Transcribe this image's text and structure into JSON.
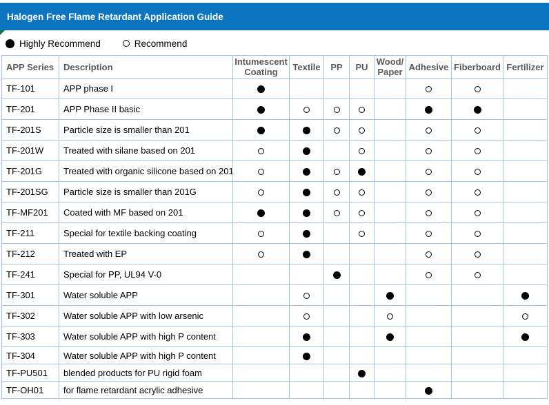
{
  "title": "Halogen Free Flame Retardant Application Guide",
  "legend": {
    "highly_recommend": "Highly Recommend",
    "recommend": "Recommend"
  },
  "colors": {
    "title_bar_blue": "#0d74c2",
    "grid_border_blue": "#aac3dd",
    "header_text_gray": "#595959",
    "flag_green": "#1e7145",
    "marker_black": "#000000"
  },
  "table": {
    "columns": [
      "APP Series",
      "Description",
      "Intumescent Coating",
      "Textile",
      "PP",
      "PU",
      "Wood/ Paper",
      "Adhesive",
      "Fiberboard",
      "Fertilizer"
    ],
    "marker_meaning": {
      "H": "Highly Recommend",
      "R": "Recommend"
    },
    "rows": [
      {
        "series": "TF-101",
        "description": "APP phase I",
        "marks": [
          "H",
          "",
          "",
          "",
          "",
          "R",
          "R",
          ""
        ]
      },
      {
        "series": "TF-201",
        "description": "APP Phase II basic",
        "marks": [
          "H",
          "R",
          "R",
          "R",
          "",
          "H",
          "H",
          ""
        ]
      },
      {
        "series": "TF-201S",
        "description": "Particle size is smaller than 201",
        "marks": [
          "H",
          "H",
          "R",
          "R",
          "",
          "R",
          "R",
          ""
        ]
      },
      {
        "series": "TF-201W",
        "description": "Treated with silane based on 201",
        "marks": [
          "R",
          "H",
          "",
          "R",
          "",
          "R",
          "R",
          ""
        ]
      },
      {
        "series": "TF-201G",
        "description": "Treated with organic silicone based on 201",
        "marks": [
          "R",
          "H",
          "R",
          "H",
          "",
          "R",
          "R",
          ""
        ]
      },
      {
        "series": "TF-201SG",
        "description": "Particle size is smaller than 201G",
        "marks": [
          "R",
          "H",
          "R",
          "R",
          "",
          "R",
          "R",
          ""
        ]
      },
      {
        "series": "TF-MF201",
        "description": "Coated with MF based on 201",
        "marks": [
          "H",
          "H",
          "R",
          "R",
          "",
          "R",
          "R",
          ""
        ]
      },
      {
        "series": "TF-211",
        "description": "Special for textile backing coating",
        "marks": [
          "R",
          "H",
          "",
          "R",
          "",
          "R",
          "R",
          ""
        ]
      },
      {
        "series": "TF-212",
        "description": "Treated with EP",
        "marks": [
          "R",
          "H",
          "",
          "",
          "",
          "R",
          "R",
          ""
        ]
      },
      {
        "series": "TF-241",
        "description": "Special for PP, UL94 V-0",
        "marks": [
          "",
          "",
          "H",
          "",
          "",
          "R",
          "R",
          ""
        ]
      },
      {
        "series": "TF-301",
        "description": "Water soluble APP",
        "marks": [
          "",
          "R",
          "",
          "",
          "H",
          "",
          "",
          "H"
        ]
      },
      {
        "series": "TF-302",
        "description": "Water soluble APP with low arsenic",
        "marks": [
          "",
          "R",
          "",
          "",
          "R",
          "",
          "",
          "R"
        ]
      },
      {
        "series": "TF-303",
        "description": "Water soluble APP with high P content",
        "marks": [
          "",
          "H",
          "",
          "",
          "H",
          "",
          "",
          "H"
        ]
      },
      {
        "series": "TF-304",
        "description": "Water soluble APP with high P content",
        "marks": [
          "",
          "H",
          "",
          "",
          "",
          "",
          "",
          ""
        ]
      },
      {
        "series": "TF-PU501",
        "description": "blended products for PU rigid foam",
        "marks": [
          "",
          "",
          "",
          "H",
          "",
          "",
          "",
          ""
        ]
      },
      {
        "series": "TF-OH01",
        "description": "for flame retardant acrylic adhesive",
        "marks": [
          "",
          "",
          "",
          "",
          "",
          "H",
          "",
          ""
        ]
      }
    ]
  }
}
